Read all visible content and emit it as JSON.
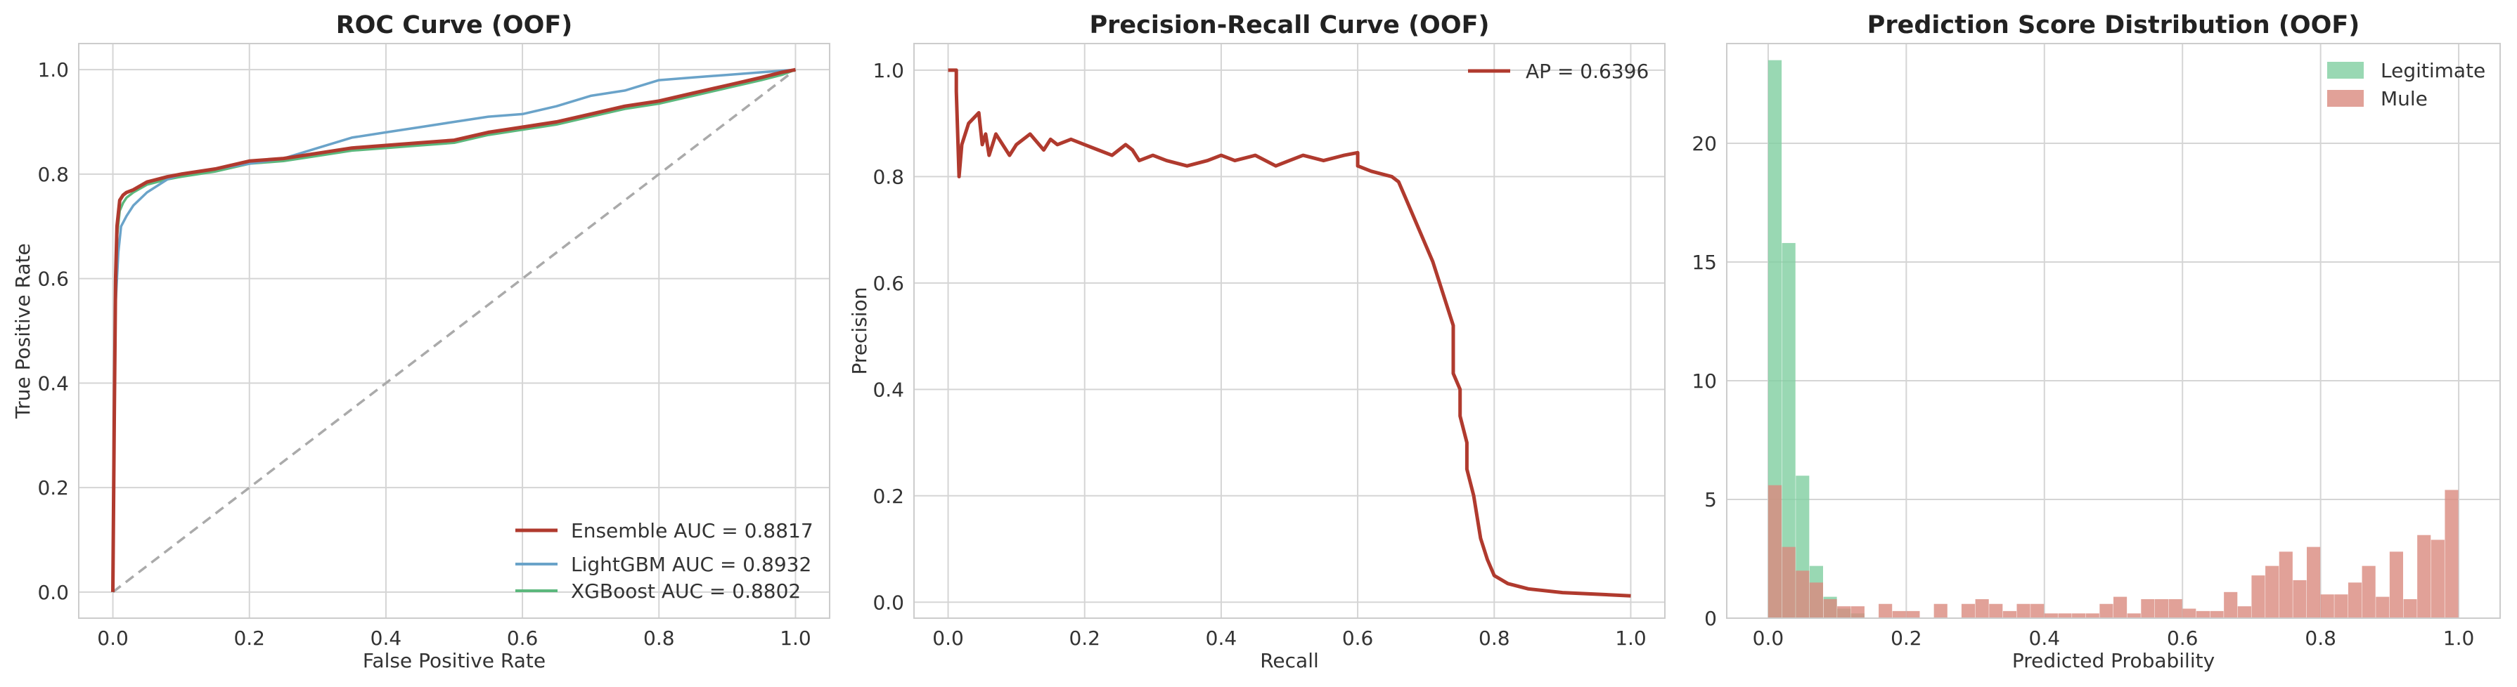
{
  "colors": {
    "ensemble": "#b03a2e",
    "lightgbm": "#6aa3c9",
    "xgboost": "#5cb87d",
    "diagonal": "#aaaaaa",
    "pr": "#b03a2e",
    "legit": "#7fcea0",
    "mule": "#d98a7e",
    "grid": "#d5d5d5",
    "frame": "#cccccc"
  },
  "chart_data": [
    {
      "type": "line",
      "title": "ROC Curve (OOF)",
      "xlabel": "False Positive Rate",
      "ylabel": "True Positive Rate",
      "xlim": [
        -0.05,
        1.05
      ],
      "ylim": [
        -0.05,
        1.05
      ],
      "xticks": [
        0.0,
        0.2,
        0.4,
        0.6,
        0.8,
        1.0
      ],
      "yticks": [
        0.0,
        0.2,
        0.4,
        0.6,
        0.8,
        1.0
      ],
      "grid": true,
      "legend_position": "lower-right",
      "series": [
        {
          "name": "Ensemble AUC = 0.8817",
          "color_key": "ensemble",
          "x": [
            0,
            0.002,
            0.004,
            0.006,
            0.01,
            0.015,
            0.02,
            0.03,
            0.05,
            0.08,
            0.1,
            0.15,
            0.2,
            0.25,
            0.3,
            0.35,
            0.4,
            0.45,
            0.5,
            0.55,
            0.6,
            0.65,
            0.7,
            0.75,
            0.8,
            0.85,
            0.9,
            0.95,
            0.98,
            1.0
          ],
          "y": [
            0,
            0.33,
            0.6,
            0.7,
            0.75,
            0.76,
            0.765,
            0.77,
            0.785,
            0.795,
            0.8,
            0.81,
            0.825,
            0.83,
            0.84,
            0.85,
            0.855,
            0.86,
            0.865,
            0.88,
            0.89,
            0.9,
            0.915,
            0.93,
            0.94,
            0.955,
            0.97,
            0.985,
            0.995,
            1.0
          ]
        },
        {
          "name": "LightGBM AUC = 0.8932",
          "color_key": "lightgbm",
          "x": [
            0,
            0.002,
            0.004,
            0.008,
            0.012,
            0.02,
            0.03,
            0.05,
            0.08,
            0.1,
            0.15,
            0.2,
            0.25,
            0.3,
            0.35,
            0.4,
            0.45,
            0.5,
            0.55,
            0.6,
            0.65,
            0.7,
            0.75,
            0.8,
            0.85,
            0.9,
            0.95,
            1.0
          ],
          "y": [
            0,
            0.3,
            0.55,
            0.65,
            0.7,
            0.72,
            0.74,
            0.765,
            0.79,
            0.8,
            0.81,
            0.82,
            0.83,
            0.85,
            0.87,
            0.88,
            0.89,
            0.9,
            0.91,
            0.915,
            0.93,
            0.95,
            0.96,
            0.98,
            0.985,
            0.99,
            0.995,
            1.0
          ]
        },
        {
          "name": "XGBoost AUC = 0.8802",
          "color_key": "xgboost",
          "x": [
            0,
            0.002,
            0.004,
            0.006,
            0.01,
            0.015,
            0.02,
            0.03,
            0.05,
            0.08,
            0.1,
            0.15,
            0.2,
            0.25,
            0.3,
            0.35,
            0.4,
            0.45,
            0.5,
            0.55,
            0.6,
            0.65,
            0.7,
            0.75,
            0.8,
            0.85,
            0.9,
            0.95,
            0.98,
            1.0
          ],
          "y": [
            0,
            0.32,
            0.58,
            0.68,
            0.73,
            0.745,
            0.755,
            0.765,
            0.78,
            0.79,
            0.795,
            0.805,
            0.82,
            0.825,
            0.835,
            0.845,
            0.85,
            0.855,
            0.86,
            0.875,
            0.885,
            0.895,
            0.91,
            0.925,
            0.935,
            0.95,
            0.965,
            0.98,
            0.99,
            1.0
          ]
        }
      ],
      "reference_line": {
        "x": [
          0,
          1
        ],
        "y": [
          0,
          1
        ],
        "style": "dashed"
      }
    },
    {
      "type": "line",
      "title": "Precision-Recall Curve (OOF)",
      "xlabel": "Recall",
      "ylabel": "Precision",
      "xlim": [
        -0.05,
        1.05
      ],
      "ylim": [
        -0.03,
        1.05
      ],
      "xticks": [
        0.0,
        0.2,
        0.4,
        0.6,
        0.8,
        1.0
      ],
      "yticks": [
        0.0,
        0.2,
        0.4,
        0.6,
        0.8,
        1.0
      ],
      "grid": true,
      "legend_position": "top-right",
      "series": [
        {
          "name": "AP = 0.6396",
          "color_key": "pr",
          "x": [
            0,
            0.012,
            0.012,
            0.016,
            0.02,
            0.03,
            0.045,
            0.05,
            0.055,
            0.06,
            0.065,
            0.07,
            0.09,
            0.1,
            0.12,
            0.14,
            0.15,
            0.16,
            0.18,
            0.2,
            0.22,
            0.24,
            0.26,
            0.27,
            0.28,
            0.3,
            0.32,
            0.35,
            0.38,
            0.4,
            0.42,
            0.45,
            0.48,
            0.5,
            0.52,
            0.55,
            0.58,
            0.6,
            0.6,
            0.62,
            0.65,
            0.66,
            0.67,
            0.68,
            0.69,
            0.7,
            0.71,
            0.72,
            0.73,
            0.74,
            0.74,
            0.75,
            0.75,
            0.76,
            0.76,
            0.77,
            0.78,
            0.79,
            0.8,
            0.82,
            0.85,
            0.9,
            0.95,
            1.0
          ],
          "y": [
            1.0,
            1.0,
            0.96,
            0.8,
            0.86,
            0.9,
            0.92,
            0.86,
            0.88,
            0.84,
            0.86,
            0.88,
            0.84,
            0.86,
            0.88,
            0.85,
            0.87,
            0.86,
            0.87,
            0.86,
            0.85,
            0.84,
            0.86,
            0.85,
            0.83,
            0.84,
            0.83,
            0.82,
            0.83,
            0.84,
            0.83,
            0.84,
            0.82,
            0.83,
            0.84,
            0.83,
            0.84,
            0.845,
            0.82,
            0.81,
            0.8,
            0.79,
            0.76,
            0.73,
            0.7,
            0.67,
            0.64,
            0.6,
            0.56,
            0.52,
            0.43,
            0.4,
            0.35,
            0.3,
            0.25,
            0.2,
            0.12,
            0.08,
            0.05,
            0.035,
            0.025,
            0.018,
            0.015,
            0.012
          ]
        }
      ]
    },
    {
      "type": "bar",
      "subtype": "histogram",
      "title": "Prediction Score Distribution (OOF)",
      "xlabel": "Predicted Probability",
      "ylabel": "",
      "xlim": [
        -0.06,
        1.06
      ],
      "ylim": [
        0,
        24.2
      ],
      "xticks": [
        0.0,
        0.2,
        0.4,
        0.6,
        0.8,
        1.0
      ],
      "yticks": [
        0,
        5,
        10,
        15,
        20
      ],
      "grid": true,
      "legend_position": "top-right",
      "bin_width": 0.02,
      "series": [
        {
          "name": "Legitimate",
          "color_key": "legit",
          "bin_starts": [
            0.0,
            0.02,
            0.04,
            0.06,
            0.08,
            0.1,
            0.12
          ],
          "values": [
            23.5,
            15.8,
            6.0,
            2.2,
            0.9,
            0.4,
            0.2
          ]
        },
        {
          "name": "Mule",
          "color_key": "mule",
          "bin_starts": [
            0.0,
            0.02,
            0.04,
            0.06,
            0.08,
            0.1,
            0.12,
            0.16,
            0.18,
            0.2,
            0.24,
            0.28,
            0.3,
            0.32,
            0.34,
            0.36,
            0.38,
            0.4,
            0.42,
            0.44,
            0.46,
            0.48,
            0.5,
            0.52,
            0.54,
            0.56,
            0.58,
            0.6,
            0.62,
            0.64,
            0.66,
            0.68,
            0.7,
            0.72,
            0.74,
            0.76,
            0.78,
            0.8,
            0.82,
            0.84,
            0.86,
            0.88,
            0.9,
            0.92,
            0.94,
            0.96,
            0.98
          ],
          "values": [
            5.6,
            3.0,
            2.0,
            1.5,
            0.8,
            0.5,
            0.5,
            0.6,
            0.3,
            0.3,
            0.6,
            0.6,
            0.8,
            0.6,
            0.3,
            0.6,
            0.6,
            0.2,
            0.2,
            0.2,
            0.2,
            0.6,
            0.9,
            0.2,
            0.8,
            0.8,
            0.8,
            0.4,
            0.3,
            0.3,
            1.1,
            0.5,
            1.8,
            2.2,
            2.8,
            1.6,
            3.0,
            1.0,
            1.0,
            1.5,
            2.2,
            0.9,
            2.8,
            0.8,
            3.5,
            3.3,
            5.4
          ]
        }
      ]
    }
  ]
}
